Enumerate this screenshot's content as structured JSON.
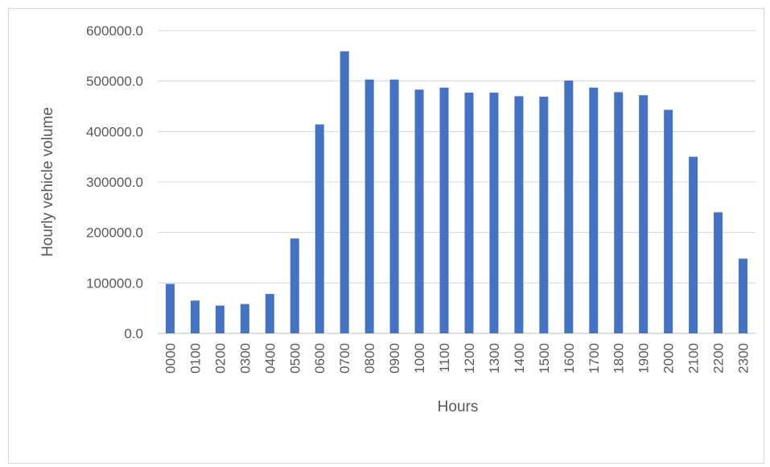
{
  "chart_data": {
    "type": "bar",
    "title": "",
    "xlabel": "Hours",
    "ylabel": "Hourly vehicle volume",
    "categories": [
      "0000",
      "0100",
      "0200",
      "0300",
      "0400",
      "0500",
      "0600",
      "0700",
      "0800",
      "0900",
      "1000",
      "1100",
      "1200",
      "1300",
      "1400",
      "1500",
      "1600",
      "1700",
      "1800",
      "1900",
      "2000",
      "2100",
      "2200",
      "2300"
    ],
    "series": [
      {
        "values": [
          98000,
          65000,
          55000,
          58000,
          78000,
          188000,
          414000,
          559000,
          503000,
          503000,
          483000,
          487000,
          477000,
          477000,
          470000,
          469000,
          501000,
          487000,
          478000,
          472000,
          443000,
          350000,
          240000,
          148000
        ]
      }
    ],
    "yticks": [
      "0.0",
      "100000.0",
      "200000.0",
      "300000.0",
      "400000.0",
      "500000.0",
      "600000.0"
    ],
    "ylim": [
      0,
      600000
    ],
    "grid": true,
    "legend": "none",
    "bar_color": "#4472c4"
  }
}
